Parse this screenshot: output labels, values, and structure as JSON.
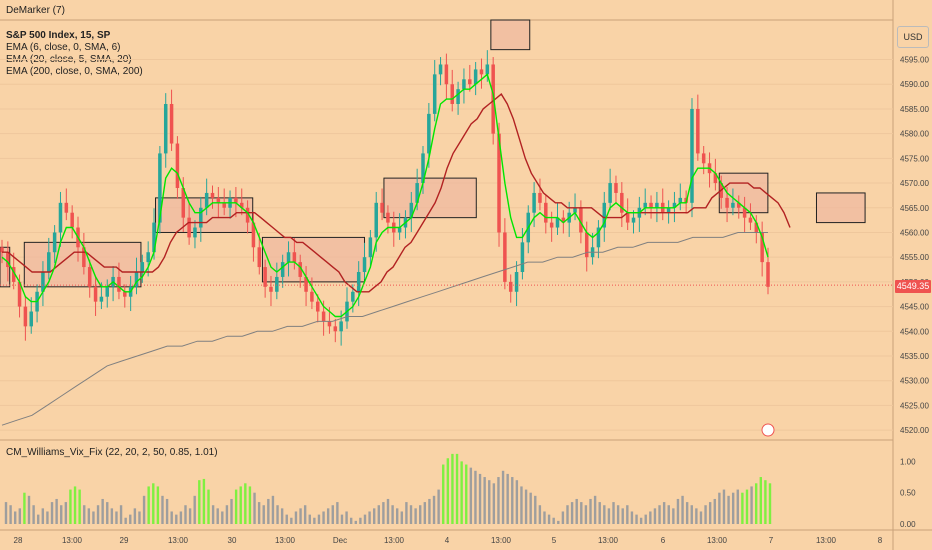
{
  "top_label": "DeMarker (7)",
  "header": {
    "symbol_line": "S&P 500 Index, 15, SP",
    "indicators": [
      "EMA (6, close, 0, SMA, 6)",
      "EMA (20, close, 5, SMA, 20)",
      "EMA (200, close, 0, SMA, 200)"
    ]
  },
  "currency_button": "USD",
  "last_price_label": "4549.35",
  "vix_indicator_label": "CM_Williams_Vix_Fix (22, 20, 2, 50, 0.85, 1.01)",
  "colors": {
    "background": "#f9d3a7",
    "up_candle": "#26a69a",
    "down_candle": "#ef5350",
    "ema6": "#00e600",
    "ema20": "#b22222",
    "ema200": "#808080",
    "vix_high": "#7ff040",
    "vix_normal": "#9e9e9e",
    "zone_fill": "#f0b8a0"
  },
  "chart_data": [
    {
      "type": "candlestick",
      "title": "S&P 500 Index, 15, SP",
      "y_axis_ticks": [
        4520,
        4525,
        4530,
        4535,
        4540,
        4545,
        4550,
        4555,
        4560,
        4565,
        4570,
        4575,
        4580,
        4585,
        4590,
        4595
      ],
      "y_tick_labels": [
        "4520.00",
        "4525.00",
        "4530.00",
        "4535.00",
        "4540.00",
        "4545.00",
        "4550.00",
        "4555.00",
        "4560.00",
        "4565.00",
        "4570.00",
        "4575.00",
        "4580.00",
        "4585.00",
        "4590.00",
        "4595.00"
      ],
      "ylim": [
        4518,
        4603
      ],
      "x_tick_labels": [
        "28",
        "13:00",
        "29",
        "13:00",
        "30",
        "13:00",
        "Dec",
        "13:00",
        "4",
        "13:00",
        "5",
        "13:00",
        "6",
        "13:00",
        "7",
        "13:00",
        "8"
      ],
      "last_price": 4549.35,
      "close_series": [
        4556,
        4553,
        4550,
        4545,
        4541,
        4544,
        4548,
        4552,
        4556,
        4560,
        4566,
        4564,
        4561,
        4557,
        4553,
        4549,
        4546,
        4547,
        4549,
        4551,
        4548,
        4547,
        4549,
        4552,
        4554,
        4556,
        4562,
        4576,
        4586,
        4578,
        4569,
        4563,
        4559,
        4561,
        4565,
        4568,
        4567,
        4566,
        4565,
        4567,
        4566,
        4565,
        4562,
        4557,
        4553,
        4549,
        4548,
        4551,
        4554,
        4556,
        4554,
        4551,
        4548,
        4546,
        4544,
        4542,
        4541,
        4540,
        4542,
        4546,
        4548,
        4552,
        4555,
        4559,
        4566,
        4564,
        4562,
        4560,
        4561,
        4563,
        4566,
        4570,
        4576,
        4584,
        4592,
        4594,
        4590,
        4586,
        4589,
        4591,
        4590,
        4593,
        4592,
        4594,
        4580,
        4560,
        4550,
        4548,
        4552,
        4558,
        4564,
        4568,
        4566,
        4562,
        4561,
        4563,
        4562,
        4564,
        4565,
        4560,
        4555,
        4557,
        4561,
        4566,
        4570,
        4568,
        4564,
        4562,
        4563,
        4565,
        4566,
        4565,
        4566,
        4564,
        4565,
        4566,
        4567,
        4566,
        4585,
        4576,
        4574,
        4572,
        4570,
        4567,
        4565,
        4566,
        4565,
        4563,
        4562,
        4560,
        4554,
        4549
      ],
      "ema6_series": [
        4555,
        4554,
        4552,
        4550,
        4547,
        4546,
        4546,
        4548,
        4550,
        4553,
        4558,
        4561,
        4561,
        4559,
        4557,
        4554,
        4551,
        4549,
        4549,
        4550,
        4549,
        4548,
        4548,
        4550,
        4551,
        4553,
        4556,
        4563,
        4571,
        4573,
        4572,
        4569,
        4566,
        4564,
        4564,
        4565,
        4566,
        4566,
        4566,
        4566,
        4566,
        4565,
        4564,
        4562,
        4559,
        4556,
        4553,
        4552,
        4553,
        4554,
        4554,
        4553,
        4551,
        4549,
        4547,
        4545,
        4544,
        4543,
        4543,
        4544,
        4545,
        4547,
        4550,
        4553,
        4558,
        4560,
        4561,
        4561,
        4561,
        4562,
        4563,
        4566,
        4570,
        4575,
        4581,
        4586,
        4587,
        4587,
        4588,
        4589,
        4589,
        4590,
        4591,
        4592,
        4588,
        4579,
        4570,
        4563,
        4559,
        4559,
        4561,
        4563,
        4564,
        4563,
        4563,
        4563,
        4562,
        4563,
        4564,
        4562,
        4560,
        4559,
        4560,
        4562,
        4565,
        4566,
        4565,
        4564,
        4564,
        4564,
        4565,
        4565,
        4565,
        4565,
        4565,
        4565,
        4566,
        4566,
        4571,
        4573,
        4573,
        4573,
        4572,
        4570,
        4568,
        4567,
        4566,
        4565,
        4564,
        4562,
        4559,
        4555
      ],
      "ema20_series": [
        4556,
        4556,
        4555,
        4554,
        4553,
        4552,
        4552,
        4552,
        4552,
        4553,
        4554,
        4555,
        4556,
        4556,
        4556,
        4555,
        4554,
        4553,
        4553,
        4553,
        4552,
        4552,
        4552,
        4552,
        4552,
        4552,
        4553,
        4555,
        4558,
        4560,
        4561,
        4562,
        4562,
        4562,
        4562,
        4563,
        4563,
        4563,
        4563,
        4564,
        4564,
        4564,
        4564,
        4563,
        4562,
        4561,
        4560,
        4559,
        4559,
        4558,
        4558,
        4557,
        4556,
        4555,
        4554,
        4553,
        4552,
        4550,
        4549,
        4548,
        4548,
        4548,
        4549,
        4550,
        4552,
        4553,
        4555,
        4557,
        4558,
        4560,
        4562,
        4564,
        4566,
        4569,
        4573,
        4576,
        4578,
        4580,
        4582,
        4583,
        4585,
        4586,
        4587,
        4588,
        4586,
        4583,
        4579,
        4575,
        4572,
        4570,
        4568,
        4567,
        4566,
        4566,
        4565,
        4565,
        4565,
        4565,
        4565,
        4564,
        4563,
        4563,
        4563,
        4563,
        4564,
        4564,
        4564,
        4564,
        4564,
        4564,
        4564,
        4564,
        4564,
        4564,
        4564,
        4565,
        4565,
        4565,
        4567,
        4568,
        4569,
        4570,
        4570,
        4570,
        4570,
        4569,
        4569,
        4568,
        4567,
        4566,
        4564,
        4561
      ],
      "ema200_series": [
        4521,
        4522,
        4523,
        4525,
        4527,
        4529,
        4531,
        4533,
        4534,
        4535,
        4536,
        4537,
        4537,
        4538,
        4538,
        4539,
        4539,
        4540,
        4540,
        4541,
        4541,
        4542,
        4542,
        4543,
        4543,
        4544,
        4545,
        4546,
        4547,
        4548,
        4549,
        4550,
        4551,
        4552,
        4553,
        4554,
        4554,
        4555,
        4555,
        4556,
        4556,
        4557,
        4557,
        4558,
        4558,
        4558,
        4559,
        4559,
        4559,
        4560,
        4560,
        4560
      ],
      "zones": [
        {
          "from_index": 0,
          "to_index": 2,
          "low": 4549,
          "high": 4557
        },
        {
          "from_index": 5,
          "to_index": 29,
          "low": 4549,
          "high": 4558
        },
        {
          "from_index": 32,
          "to_index": 52,
          "low": 4560,
          "high": 4567
        },
        {
          "from_index": 54,
          "to_index": 75,
          "low": 4550,
          "high": 4559
        },
        {
          "from_index": 79,
          "to_index": 98,
          "low": 4563,
          "high": 4571
        },
        {
          "from_index": 101,
          "to_index": 109,
          "low": 4597,
          "high": 4603
        },
        {
          "from_index": 148,
          "to_index": 158,
          "low": 4564,
          "high": 4572
        },
        {
          "from_index": 168,
          "to_index": 178,
          "low": 4562,
          "high": 4568
        }
      ]
    },
    {
      "type": "bar",
      "title": "CM_Williams_Vix_Fix (22, 20, 2, 50, 0.85, 1.01)",
      "y_tick_labels": [
        "0.00",
        "0.50",
        "1.00"
      ],
      "ylim": [
        0,
        1.15
      ],
      "values": [
        0.35,
        0.3,
        0.2,
        0.25,
        0.5,
        0.45,
        0.3,
        0.15,
        0.25,
        0.2,
        0.35,
        0.4,
        0.3,
        0.35,
        0.55,
        0.6,
        0.55,
        0.3,
        0.25,
        0.2,
        0.3,
        0.4,
        0.35,
        0.25,
        0.2,
        0.3,
        0.1,
        0.15,
        0.25,
        0.2,
        0.45,
        0.6,
        0.65,
        0.6,
        0.45,
        0.4,
        0.2,
        0.15,
        0.2,
        0.3,
        0.25,
        0.45,
        0.7,
        0.72,
        0.55,
        0.3,
        0.25,
        0.2,
        0.3,
        0.4,
        0.55,
        0.6,
        0.65,
        0.6,
        0.5,
        0.35,
        0.3,
        0.4,
        0.45,
        0.3,
        0.25,
        0.15,
        0.1,
        0.2,
        0.25,
        0.3,
        0.15,
        0.1,
        0.15,
        0.2,
        0.25,
        0.3,
        0.35,
        0.15,
        0.2,
        0.1,
        0.05,
        0.1,
        0.15,
        0.2,
        0.25,
        0.3,
        0.35,
        0.4,
        0.3,
        0.25,
        0.2,
        0.35,
        0.3,
        0.25,
        0.3,
        0.35,
        0.4,
        0.45,
        0.55,
        0.95,
        1.05,
        1.12,
        1.12,
        1.0,
        0.95,
        0.9,
        0.85,
        0.8,
        0.75,
        0.7,
        0.65,
        0.75,
        0.85,
        0.8,
        0.75,
        0.7,
        0.6,
        0.55,
        0.5,
        0.45,
        0.3,
        0.2,
        0.15,
        0.1,
        0.05,
        0.2,
        0.3,
        0.35,
        0.4,
        0.35,
        0.3,
        0.4,
        0.45,
        0.35,
        0.3,
        0.25,
        0.35,
        0.3,
        0.25,
        0.3,
        0.2,
        0.15,
        0.1,
        0.15,
        0.2,
        0.25,
        0.3,
        0.35,
        0.3,
        0.25,
        0.4,
        0.45,
        0.35,
        0.3,
        0.25,
        0.2,
        0.3,
        0.35,
        0.4,
        0.5,
        0.55,
        0.45,
        0.5,
        0.55,
        0.5,
        0.55,
        0.6,
        0.65,
        0.75,
        0.7,
        0.65
      ],
      "high_flags": [
        0,
        0,
        0,
        0,
        1,
        0,
        0,
        0,
        0,
        0,
        0,
        0,
        0,
        0,
        1,
        1,
        1,
        0,
        0,
        0,
        0,
        0,
        0,
        0,
        0,
        0,
        0,
        0,
        0,
        0,
        0,
        1,
        1,
        1,
        0,
        0,
        0,
        0,
        0,
        0,
        0,
        0,
        1,
        1,
        1,
        0,
        0,
        0,
        0,
        0,
        1,
        1,
        1,
        1,
        0,
        0,
        0,
        0,
        0,
        0,
        0,
        0,
        0,
        0,
        0,
        0,
        0,
        0,
        0,
        0,
        0,
        0,
        0,
        0,
        0,
        0,
        0,
        0,
        0,
        0,
        0,
        0,
        0,
        0,
        0,
        0,
        0,
        0,
        0,
        0,
        0,
        0,
        0,
        0,
        0,
        1,
        1,
        1,
        1,
        1,
        1,
        0,
        0,
        0,
        0,
        0,
        0,
        0,
        0,
        0,
        0,
        0,
        0,
        0,
        0,
        0,
        0,
        0,
        0,
        0,
        0,
        0,
        0,
        0,
        0,
        0,
        0,
        0,
        0,
        0,
        0,
        0,
        0,
        0,
        0,
        0,
        0,
        0,
        0,
        0,
        0,
        0,
        0,
        0,
        0,
        0,
        0,
        0,
        0,
        0,
        0,
        0,
        0,
        0,
        0,
        0,
        0,
        0,
        0,
        0,
        1,
        1,
        0,
        1,
        1,
        1,
        1,
        1,
        1,
        1
      ]
    }
  ]
}
